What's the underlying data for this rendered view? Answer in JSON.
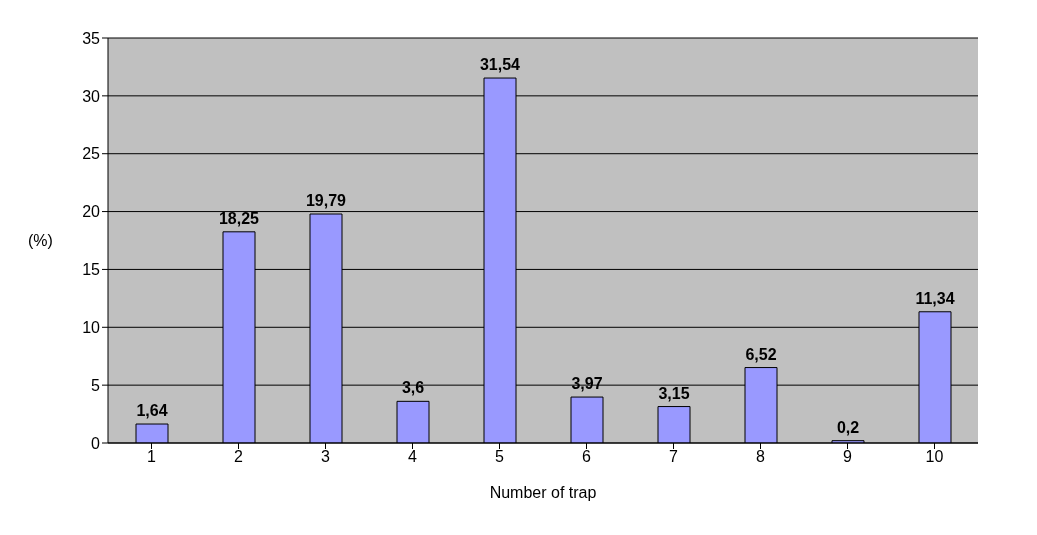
{
  "chart_data": {
    "type": "bar",
    "categories": [
      "1",
      "2",
      "3",
      "4",
      "5",
      "6",
      "7",
      "8",
      "9",
      "10"
    ],
    "values": [
      1.64,
      18.25,
      19.79,
      3.6,
      31.54,
      3.97,
      3.15,
      6.52,
      0.2,
      11.34
    ],
    "value_labels": [
      "1,64",
      "18,25",
      "19,79",
      "3,6",
      "31,54",
      "3,97",
      "3,15",
      "6,52",
      "0,2",
      "11,34"
    ],
    "color": "#9999ff",
    "xlabel": "Number of trap",
    "ylabel": "(%)",
    "ylim": [
      0,
      35
    ],
    "yticks": [
      0,
      5,
      10,
      15,
      20,
      25,
      30,
      35
    ],
    "grid": "y"
  }
}
